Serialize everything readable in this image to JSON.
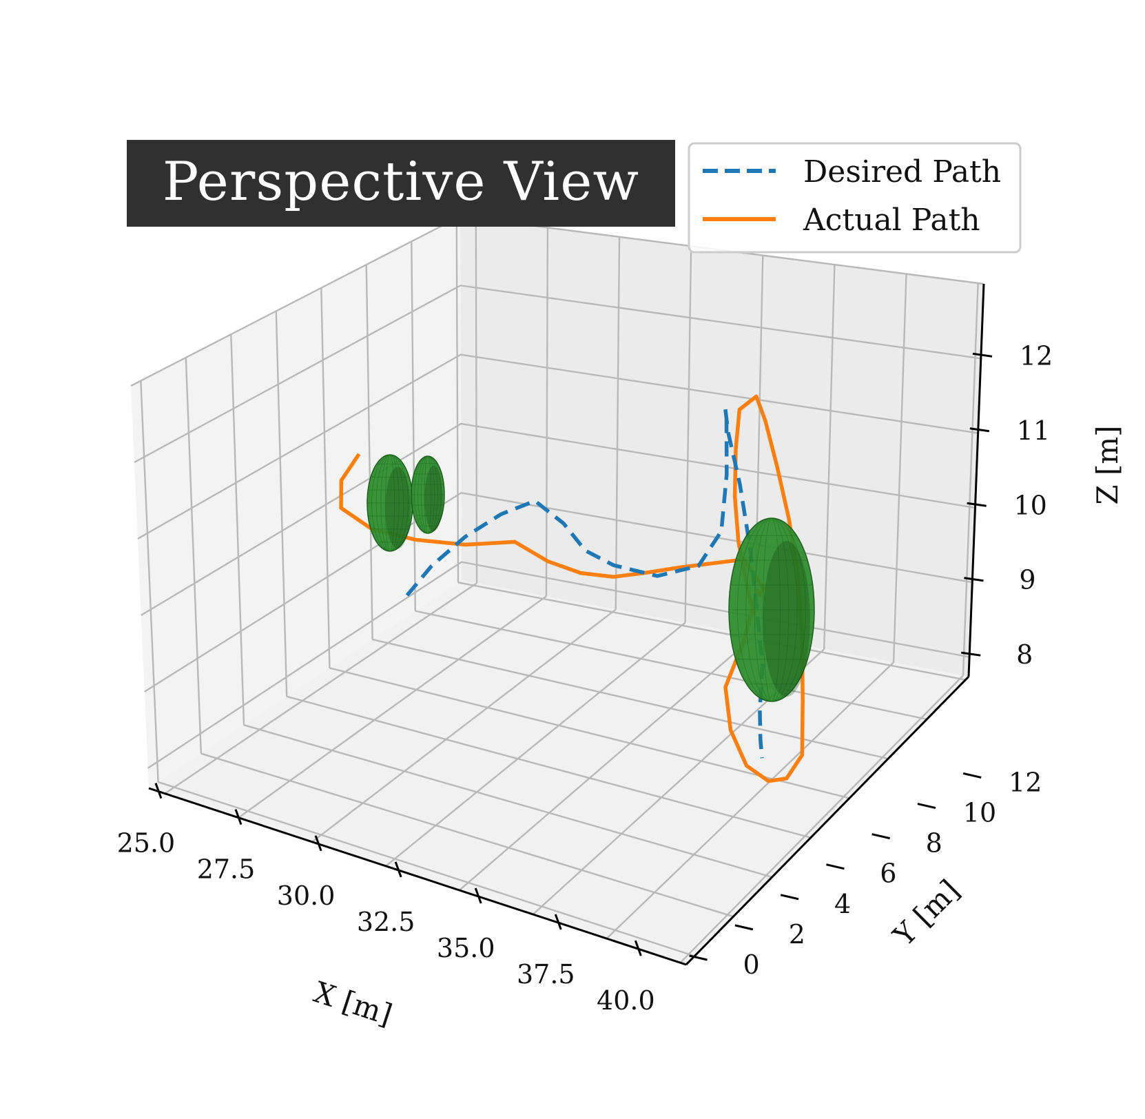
{
  "chart_data": {
    "type": "line3d",
    "title": "Perspective View",
    "xlabel": "X [m]",
    "ylabel": "Y [m]",
    "zlabel": "Z [m]",
    "xticks": [
      "25.0",
      "27.5",
      "30.0",
      "32.5",
      "35.0",
      "37.5",
      "40.0"
    ],
    "yticks": [
      "0",
      "2",
      "4",
      "6",
      "8",
      "10",
      "12"
    ],
    "zticks": [
      "8",
      "9",
      "10",
      "11",
      "12"
    ],
    "grid": true,
    "legend": "top-right",
    "series": [
      {
        "name": "Desired Path",
        "style": "dashed",
        "color": "#1f77b4",
        "points": [
          [
            27.2,
            7.5,
            9.0
          ],
          [
            27.8,
            7.8,
            9.4
          ],
          [
            28.6,
            8.2,
            9.8
          ],
          [
            29.4,
            8.7,
            10.1
          ],
          [
            30.2,
            9.1,
            10.3
          ],
          [
            31.0,
            9.2,
            10.1
          ],
          [
            31.8,
            9.0,
            9.9
          ],
          [
            32.6,
            9.1,
            9.8
          ],
          [
            33.6,
            9.6,
            9.7
          ],
          [
            34.4,
            10.3,
            9.8
          ],
          [
            34.8,
            10.8,
            10.2
          ],
          [
            34.9,
            11.0,
            10.9
          ],
          [
            34.9,
            11.1,
            11.6
          ],
          [
            35.1,
            10.8,
            11.8
          ],
          [
            35.6,
            10.2,
            11.7
          ],
          [
            36.5,
            9.4,
            11.3
          ],
          [
            37.4,
            8.5,
            10.8
          ],
          [
            38.2,
            7.6,
            10.3
          ],
          [
            38.9,
            6.8,
            9.8
          ],
          [
            39.2,
            6.2,
            9.4
          ],
          [
            39.4,
            5.9,
            9.1
          ],
          [
            39.5,
            5.8,
            8.9
          ]
        ]
      },
      {
        "name": "Actual Path",
        "style": "solid",
        "color": "#ff7f0e",
        "points": [
          [
            25.8,
            7.6,
            10.6
          ],
          [
            25.5,
            7.2,
            10.3
          ],
          [
            25.6,
            7.0,
            10.0
          ],
          [
            26.4,
            7.2,
            9.8
          ],
          [
            27.4,
            7.7,
            9.7
          ],
          [
            28.6,
            8.2,
            9.7
          ],
          [
            29.8,
            8.7,
            9.8
          ],
          [
            30.6,
            9.0,
            9.6
          ],
          [
            31.4,
            9.3,
            9.5
          ],
          [
            32.2,
            9.6,
            9.5
          ],
          [
            33.0,
            9.9,
            9.6
          ],
          [
            33.8,
            10.3,
            9.7
          ],
          [
            34.6,
            10.6,
            9.8
          ],
          [
            35.4,
            10.9,
            9.9
          ],
          [
            36.2,
            10.6,
            9.7
          ],
          [
            36.6,
            9.9,
            9.8
          ],
          [
            36.9,
            9.4,
            10.0
          ],
          [
            36.7,
            9.0,
            9.4
          ],
          [
            36.5,
            8.4,
            8.9
          ],
          [
            37.2,
            7.6,
            8.6
          ],
          [
            38.4,
            6.6,
            8.5
          ],
          [
            39.6,
            5.9,
            8.6
          ],
          [
            40.4,
            5.6,
            8.8
          ],
          [
            41.0,
            5.5,
            9.2
          ],
          [
            40.8,
            5.9,
            9.8
          ],
          [
            40.2,
            6.8,
            10.4
          ],
          [
            39.4,
            7.8,
            10.9
          ],
          [
            38.6,
            8.6,
            11.3
          ],
          [
            37.7,
            9.4,
            11.7
          ],
          [
            36.8,
            10.2,
            12.0
          ],
          [
            36.1,
            10.8,
            12.1
          ],
          [
            35.4,
            11.0,
            11.8
          ],
          [
            35.3,
            10.9,
            11.3
          ],
          [
            35.5,
            10.5,
            10.8
          ],
          [
            36.0,
            9.9,
            10.4
          ],
          [
            36.5,
            9.5,
            10.0
          ],
          [
            36.6,
            9.6,
            9.6
          ]
        ]
      }
    ],
    "obstacles": [
      {
        "shape": "ellipsoid",
        "color": "#2a8a2a"
      },
      {
        "shape": "ellipsoid",
        "color": "#2a8a2a"
      },
      {
        "shape": "ellipsoid",
        "color": "#2a8a2a"
      }
    ]
  }
}
